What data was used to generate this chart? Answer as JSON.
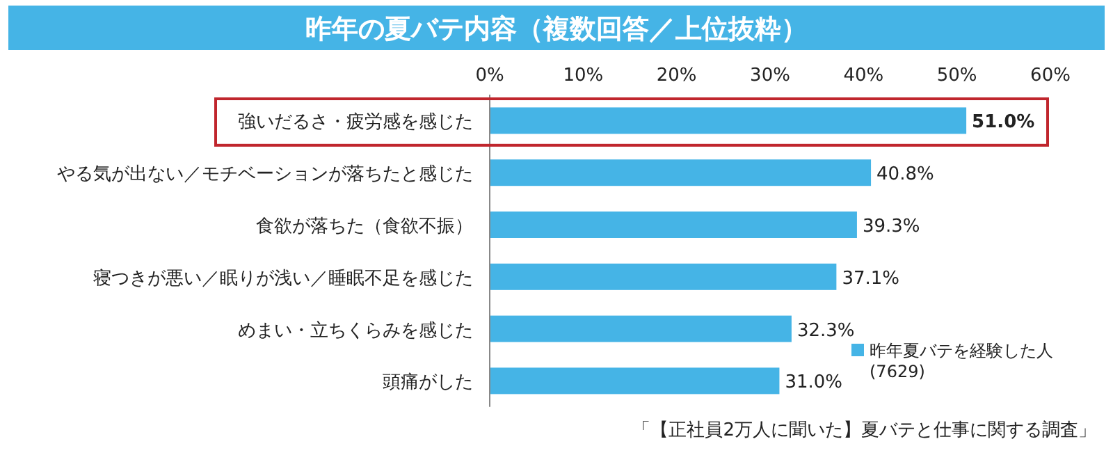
{
  "chart_data": {
    "type": "bar",
    "orientation": "horizontal",
    "title": "昨年の夏バテ内容（複数回答／上位抜粋）",
    "categories": [
      "強いだるさ・疲労感を感じた",
      "やる気が出ない／モチベーションが落ちたと感じた",
      "食欲が落ちた（食欲不振）",
      "寝つきが悪い／眠りが浅い／睡眠不足を感じた",
      "めまい・立ちくらみを感じた",
      "頭痛がした"
    ],
    "series": [
      {
        "name": "昨年夏バテを経験した人\n(7629)",
        "color": "#45b4e6",
        "values": [
          51.0,
          40.8,
          39.3,
          37.1,
          32.3,
          31.0
        ]
      }
    ],
    "value_labels": [
      "51.0%",
      "40.8%",
      "39.3%",
      "37.1%",
      "32.3%",
      "31.0%"
    ],
    "xlim": [
      0,
      60
    ],
    "xticks": [
      {
        "value": 0,
        "label": "0%"
      },
      {
        "value": 10,
        "label": "10%"
      },
      {
        "value": 20,
        "label": "20%"
      },
      {
        "value": 30,
        "label": "30%"
      },
      {
        "value": 40,
        "label": "40%"
      },
      {
        "value": 50,
        "label": "50%"
      },
      {
        "value": 60,
        "label": "60%"
      }
    ],
    "legend": "bottom right",
    "annotations": [
      "「【正社員2万人に聞いた】夏バテと仕事に関する調査」"
    ]
  }
}
